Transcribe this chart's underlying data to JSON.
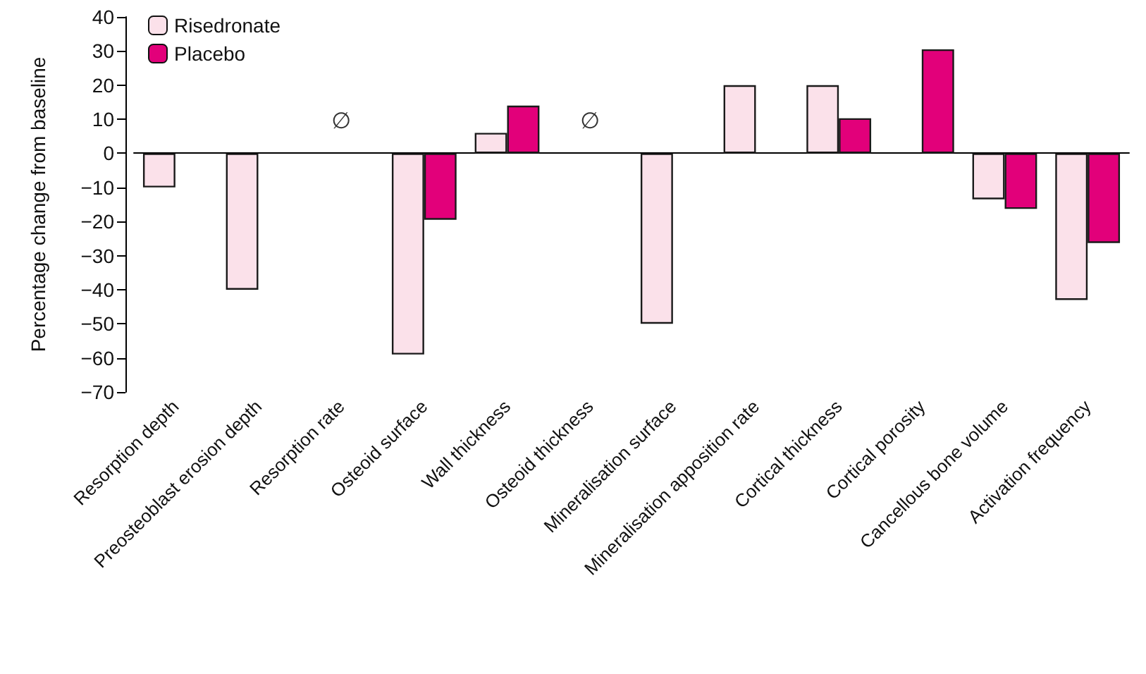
{
  "chart_data": {
    "type": "bar",
    "ylabel": "Percentage change from baseline",
    "categories": [
      "Resorption depth",
      "Preosteoblast erosion depth",
      "Resorption rate",
      "Osteoid surface",
      "Wall thickness",
      "Osteoid thickness",
      "Mineralisation surface",
      "Mineralisation apposition rate",
      "Cortical thickness",
      "Cortical porosity",
      "Cancellous bone volume",
      "Activation frequency"
    ],
    "series": [
      {
        "name": "Risedronate",
        "color": "#fbe1ea",
        "values": [
          -10,
          -40,
          null,
          -59,
          6,
          null,
          -50,
          20,
          20,
          null,
          -13.5,
          -43
        ]
      },
      {
        "name": "Placebo",
        "color": "#e2007a",
        "values": [
          null,
          null,
          null,
          -19.5,
          14,
          null,
          null,
          null,
          10.3,
          30.5,
          -16.3,
          -26.3
        ]
      }
    ],
    "ylim": [
      -70,
      40
    ],
    "yticks": [
      {
        "value": -70,
        "label": "−70"
      },
      {
        "value": -60,
        "label": "−60"
      },
      {
        "value": -50,
        "label": "−50"
      },
      {
        "value": -40,
        "label": "−40"
      },
      {
        "value": -30,
        "label": "−30"
      },
      {
        "value": -20,
        "label": "−20"
      },
      {
        "value": -10,
        "label": "−10"
      },
      0,
      10,
      20,
      30,
      40
    ],
    "annotations": [
      "∅",
      "∅"
    ],
    "legend": "top left"
  }
}
